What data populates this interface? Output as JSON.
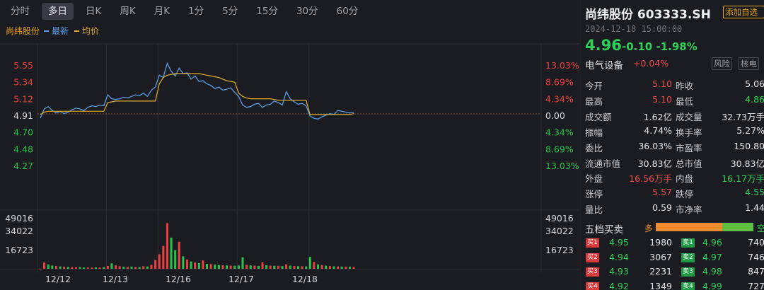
{
  "tabs": [
    {
      "label": "分时",
      "active": false
    },
    {
      "label": "多日",
      "active": true
    },
    {
      "label": "日K",
      "active": false
    },
    {
      "label": "周K",
      "active": false
    },
    {
      "label": "月K",
      "active": false
    },
    {
      "label": "1分",
      "active": false
    },
    {
      "label": "5分",
      "active": false
    },
    {
      "label": "15分",
      "active": false
    },
    {
      "label": "30分",
      "active": false
    },
    {
      "label": "60分",
      "active": false
    }
  ],
  "legend": {
    "stock_name": "尚纬股份",
    "latest_label": "最新",
    "avg_label": "均价",
    "latest_color": "#5b9be0",
    "avg_color": "#e3b12c"
  },
  "chart_data": {
    "type": "line",
    "x_tick_labels": [
      "12/12",
      "12/13",
      "12/16",
      "12/17",
      "12/18"
    ],
    "price_axis": {
      "labels": [
        "5.55",
        "5.34",
        "5.12",
        "4.91",
        "4.70",
        "4.48",
        "4.27"
      ],
      "values": [
        5.55,
        5.34,
        5.12,
        4.91,
        4.7,
        4.48,
        4.27
      ],
      "reference": 4.91,
      "pct_labels": [
        "13.03%",
        "8.69%",
        "4.34%",
        "0.00",
        "4.34%",
        "8.69%",
        "13.03%"
      ],
      "ylim": [
        4.27,
        5.55
      ]
    },
    "volume_axis": {
      "labels": [
        "49016",
        "34022",
        "16723"
      ],
      "values": [
        49016,
        34022,
        16723
      ],
      "ylim": [
        0,
        49016
      ]
    },
    "series": [
      {
        "name": "最新",
        "color": "#5b9be0",
        "x": [
          0,
          1,
          2,
          3,
          4,
          5,
          6,
          7,
          8,
          9,
          10,
          11,
          12,
          13,
          14,
          15,
          16,
          17,
          18,
          19,
          20,
          21,
          22,
          23,
          24,
          25,
          26,
          27,
          28,
          29,
          30,
          31,
          32,
          33,
          34,
          35,
          36,
          37,
          38,
          39,
          40,
          41,
          42,
          43,
          44,
          45,
          46,
          47,
          48,
          49,
          50,
          51,
          52,
          53,
          54,
          55,
          56,
          57,
          58,
          59,
          60,
          61,
          62,
          63,
          64,
          65,
          66,
          67,
          68,
          69,
          70,
          71,
          72,
          73,
          74,
          75,
          76,
          77,
          78,
          79
        ],
        "values": [
          4.88,
          5.0,
          5.03,
          4.98,
          4.95,
          4.97,
          4.94,
          4.96,
          4.99,
          5.01,
          5.0,
          4.98,
          5.02,
          5.04,
          5.03,
          5.05,
          5.04,
          5.18,
          5.13,
          5.12,
          5.13,
          5.15,
          5.14,
          5.16,
          5.18,
          5.17,
          5.2,
          5.16,
          5.24,
          5.28,
          5.43,
          5.4,
          5.58,
          5.48,
          5.42,
          5.52,
          5.45,
          5.46,
          5.38,
          5.42,
          5.35,
          5.36,
          5.32,
          5.3,
          5.26,
          5.28,
          5.24,
          5.25,
          5.27,
          5.21,
          5.16,
          5.05,
          5.02,
          5.03,
          5.06,
          5.07,
          5.02,
          5.05,
          5.06,
          5.1,
          5.08,
          5.05,
          5.22,
          5.13,
          5.09,
          5.06,
          5.07,
          5.04,
          4.91,
          4.88,
          4.87,
          4.9,
          4.92,
          4.94,
          4.93,
          4.98,
          4.97,
          4.96,
          4.95,
          4.96
        ]
      },
      {
        "name": "均价",
        "color": "#e3b12c",
        "x": [
          0,
          1,
          2,
          3,
          4,
          5,
          6,
          7,
          8,
          9,
          10,
          11,
          12,
          13,
          14,
          15,
          16,
          17,
          18,
          19,
          20,
          21,
          22,
          23,
          24,
          25,
          26,
          27,
          28,
          29,
          30,
          31,
          32,
          33,
          34,
          35,
          36,
          37,
          38,
          39,
          40,
          41,
          42,
          43,
          44,
          45,
          46,
          47,
          48,
          49,
          50,
          51,
          52,
          53,
          54,
          55,
          56,
          57,
          58,
          59,
          60,
          61,
          62,
          63,
          64,
          65,
          66,
          67,
          68,
          69,
          70,
          71,
          72,
          73,
          74,
          75,
          76,
          77,
          78,
          79
        ],
        "values": [
          4.93,
          4.96,
          4.97,
          4.97,
          4.97,
          4.97,
          4.97,
          4.97,
          4.97,
          4.97,
          4.97,
          4.97,
          4.97,
          4.97,
          4.97,
          4.97,
          4.97,
          5.08,
          5.09,
          5.1,
          5.1,
          5.1,
          5.1,
          5.1,
          5.1,
          5.1,
          5.1,
          5.1,
          5.1,
          5.1,
          5.32,
          5.4,
          5.43,
          5.44,
          5.45,
          5.45,
          5.45,
          5.45,
          5.45,
          5.45,
          5.45,
          5.44,
          5.43,
          5.42,
          5.41,
          5.4,
          5.38,
          5.36,
          5.35,
          5.34,
          5.2,
          5.16,
          5.14,
          5.13,
          5.13,
          5.13,
          5.13,
          5.13,
          5.13,
          5.12,
          5.11,
          5.11,
          5.11,
          5.11,
          5.11,
          5.11,
          5.11,
          5.11,
          4.93,
          4.93,
          4.93,
          4.93,
          4.93,
          4.93,
          4.93,
          4.93,
          4.93,
          4.93,
          4.93,
          4.94
        ]
      }
    ],
    "volume": [
      120,
      6000,
      4200,
      3100,
      2600,
      2200,
      1900,
      1700,
      1500,
      1400,
      1600,
      1300,
      1200,
      1100,
      1300,
      1200,
      1500,
      2800,
      5200,
      3300,
      2500,
      2000,
      1800,
      2100,
      1700,
      1600,
      2400,
      2200,
      3800,
      8500,
      14000,
      22000,
      44000,
      30000,
      18000,
      26000,
      12000,
      9000,
      7000,
      6000,
      5500,
      8000,
      4800,
      4500,
      4000,
      3600,
      3400,
      3200,
      3000,
      2900,
      3200,
      11000,
      3800,
      3300,
      3000,
      2800,
      6200,
      3400,
      3000,
      2900,
      2800,
      2600,
      4200,
      3000,
      2700,
      2500,
      2400,
      2300,
      11500,
      6500,
      4200,
      3500,
      3000,
      2600,
      2400,
      2200,
      2100,
      2000,
      1900,
      1800
    ],
    "volume_colors": [
      "up",
      "up",
      "down",
      "down",
      "up",
      "down",
      "up",
      "down",
      "up",
      "up",
      "down",
      "down",
      "up",
      "up",
      "down",
      "up",
      "down",
      "up",
      "down",
      "up",
      "up",
      "down",
      "up",
      "down",
      "up",
      "down",
      "up",
      "down",
      "up",
      "up",
      "up",
      "up",
      "up",
      "down",
      "down",
      "up",
      "down",
      "up",
      "down",
      "up",
      "down",
      "up",
      "down",
      "up",
      "down",
      "down",
      "up",
      "down",
      "up",
      "down",
      "down",
      "down",
      "up",
      "down",
      "up",
      "down",
      "up",
      "down",
      "up",
      "down",
      "up",
      "down",
      "up",
      "down",
      "up",
      "down",
      "up",
      "down",
      "down",
      "up",
      "down",
      "up",
      "down",
      "up",
      "down",
      "up",
      "down",
      "up",
      "down",
      "up"
    ]
  },
  "header": {
    "stock_title": "尚纬股份 603333.SH",
    "add_label": "添加自选",
    "datetime": "2024-12-18 15:00:00",
    "price": "4.96",
    "change": "-0.10 -1.98%",
    "sector": "电气设备",
    "sector_change": "+0.04%",
    "btn_risk": "风险",
    "btn_core": "核电"
  },
  "quote_rows": [
    {
      "l1": "今开",
      "v1": "5.10",
      "c1": "red",
      "l2": "昨收",
      "v2": "5.06",
      "c2": "white"
    },
    {
      "l1": "最高",
      "v1": "5.10",
      "c1": "red",
      "l2": "最低",
      "v2": "4.86",
      "c2": "green"
    },
    {
      "l1": "成交额",
      "v1": "1.62亿",
      "c1": "white",
      "l2": "成交量",
      "v2": "32.73万手",
      "c2": "white"
    },
    {
      "l1": "振幅",
      "v1": "4.74%",
      "c1": "white",
      "l2": "换手率",
      "v2": "5.27%",
      "c2": "white"
    },
    {
      "l1": "委比",
      "v1": "36.03%",
      "c1": "white",
      "l2": "市盈率",
      "v2": "150.80",
      "c2": "white"
    },
    {
      "l1": "流通市值",
      "v1": "30.83亿",
      "c1": "white",
      "l2": "总市值",
      "v2": "30.83亿",
      "c2": "white"
    },
    {
      "l1": "外盘",
      "v1": "16.56万手",
      "c1": "red",
      "l2": "内盘",
      "v2": "16.17万手",
      "c2": "green"
    },
    {
      "l1": "涨停",
      "v1": "5.57",
      "c1": "red",
      "l2": "跌停",
      "v2": "4.55",
      "c2": "green"
    },
    {
      "l1": "量比",
      "v1": "0.59",
      "c1": "white",
      "l2": "市净率",
      "v2": "1.44",
      "c2": "white"
    }
  ],
  "orderbook": {
    "title": "五档买卖",
    "duo": "多",
    "kong": "空",
    "buy_ratio": 0.68,
    "rows": [
      {
        "b_tag": "买1",
        "b_price": "4.95",
        "b_vol": "1980",
        "s_tag": "卖1",
        "s_price": "4.96",
        "s_vol": "740"
      },
      {
        "b_tag": "买2",
        "b_price": "4.94",
        "b_vol": "3067",
        "s_tag": "卖2",
        "s_price": "4.97",
        "s_vol": "746"
      },
      {
        "b_tag": "买3",
        "b_price": "4.93",
        "b_vol": "2231",
        "s_tag": "卖3",
        "s_price": "4.98",
        "s_vol": "847"
      },
      {
        "b_tag": "买4",
        "b_price": "4.92",
        "b_vol": "1349",
        "s_tag": "卖4",
        "s_price": "4.99",
        "s_vol": "727"
      }
    ]
  },
  "colors": {
    "up": "#e8413f",
    "down": "#27c24c",
    "background": "#1b1c21",
    "accent": "#e8a21d"
  }
}
